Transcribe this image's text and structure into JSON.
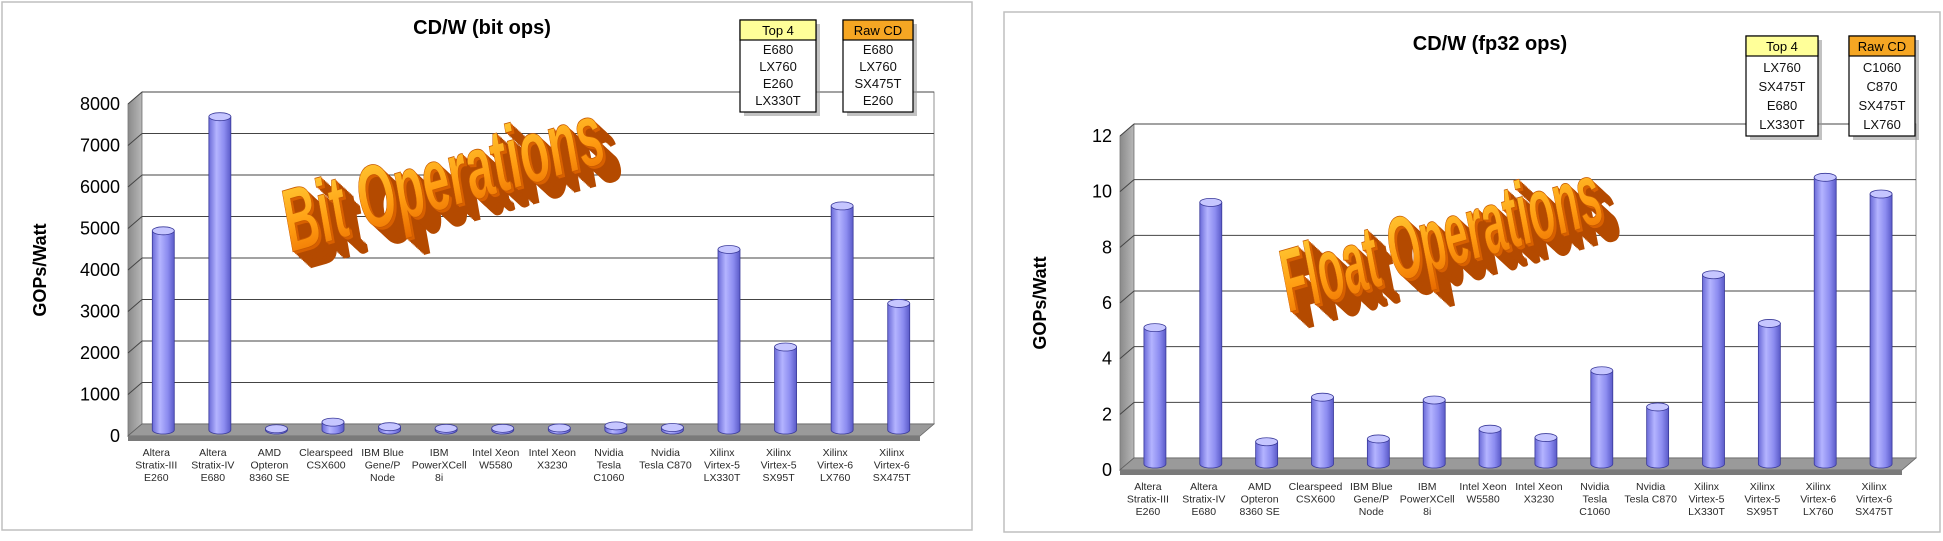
{
  "chart_data": [
    {
      "type": "bar",
      "title": "CD/W (bit ops)",
      "ylabel": "GOPs/Watt",
      "watermark": "Bit Operations",
      "ylim": [
        0,
        8000
      ],
      "yticks": [
        "0",
        "1000",
        "2000",
        "3000",
        "4000",
        "5000",
        "6000",
        "7000",
        "8000"
      ],
      "categories": [
        [
          "Altera",
          "Stratix-III",
          "E260"
        ],
        [
          "Altera",
          "Stratix-IV",
          "E680"
        ],
        [
          "AMD",
          "Opteron",
          "8360 SE"
        ],
        [
          "Clearspeed",
          "CSX600"
        ],
        [
          "IBM Blue",
          "Gene/P",
          "Node"
        ],
        [
          "IBM",
          "PowerXCell",
          "8i"
        ],
        [
          "Intel Xeon",
          "W5580"
        ],
        [
          "Intel Xeon",
          "X3230"
        ],
        [
          "Nvidia",
          "Tesla",
          "C1060"
        ],
        [
          "Nvidia",
          "Tesla C870"
        ],
        [
          "Xilinx",
          "Virtex-5",
          "LX330T"
        ],
        [
          "Xilinx",
          "Virtex-5",
          "SX95T"
        ],
        [
          "Xilinx",
          "Virtex-6",
          "LX760"
        ],
        [
          "Xilinx",
          "Virtex-6",
          "SX475T"
        ]
      ],
      "values": [
        4800,
        7550,
        30,
        190,
        80,
        40,
        40,
        50,
        100,
        60,
        4350,
        2000,
        5400,
        3050
      ],
      "legend_tables": [
        {
          "header": "Top 4",
          "header_color": "#ffff99",
          "items": [
            "E680",
            "LX760",
            "E260",
            "LX330T"
          ]
        },
        {
          "header": "Raw CD",
          "header_color": "#f5a623",
          "items": [
            "E680",
            "LX760",
            "SX475T",
            "E260"
          ]
        }
      ],
      "bar_color": "#8c8cf0"
    },
    {
      "type": "bar",
      "title": "CD/W (fp32 ops)",
      "ylabel": "GOPs/Watt",
      "watermark": "Float Operations",
      "ylim": [
        0,
        12
      ],
      "yticks": [
        "0",
        "2",
        "4",
        "6",
        "8",
        "10",
        "12"
      ],
      "categories": [
        [
          "Altera",
          "Stratix-III",
          "E260"
        ],
        [
          "Altera",
          "Stratix-IV",
          "E680"
        ],
        [
          "AMD",
          "Opteron",
          "8360 SE"
        ],
        [
          "Clearspeed",
          "CSX600"
        ],
        [
          "IBM Blue",
          "Gene/P",
          "Node"
        ],
        [
          "IBM",
          "PowerXCell",
          "8i"
        ],
        [
          "Intel Xeon",
          "W5580"
        ],
        [
          "Intel Xeon",
          "X3230"
        ],
        [
          "Nvidia",
          "Tesla",
          "C1060"
        ],
        [
          "Nvidia",
          "Tesla C870"
        ],
        [
          "Xilinx",
          "Virtex-5",
          "LX330T"
        ],
        [
          "Xilinx",
          "Virtex-5",
          "SX95T"
        ],
        [
          "Xilinx",
          "Virtex-6",
          "LX760"
        ],
        [
          "Xilinx",
          "Virtex-6",
          "SX475T"
        ]
      ],
      "values": [
        4.9,
        9.4,
        0.8,
        2.4,
        0.9,
        2.3,
        1.25,
        0.95,
        3.35,
        2.05,
        6.8,
        5.05,
        10.3,
        9.7
      ],
      "legend_tables": [
        {
          "header": "Top 4",
          "header_color": "#ffff99",
          "items": [
            "LX760",
            "SX475T",
            "E680",
            "LX330T"
          ]
        },
        {
          "header": "Raw CD",
          "header_color": "#f5a623",
          "items": [
            "C1060",
            "C870",
            "SX475T",
            "LX760"
          ]
        }
      ],
      "bar_color": "#8c8cf0"
    }
  ]
}
